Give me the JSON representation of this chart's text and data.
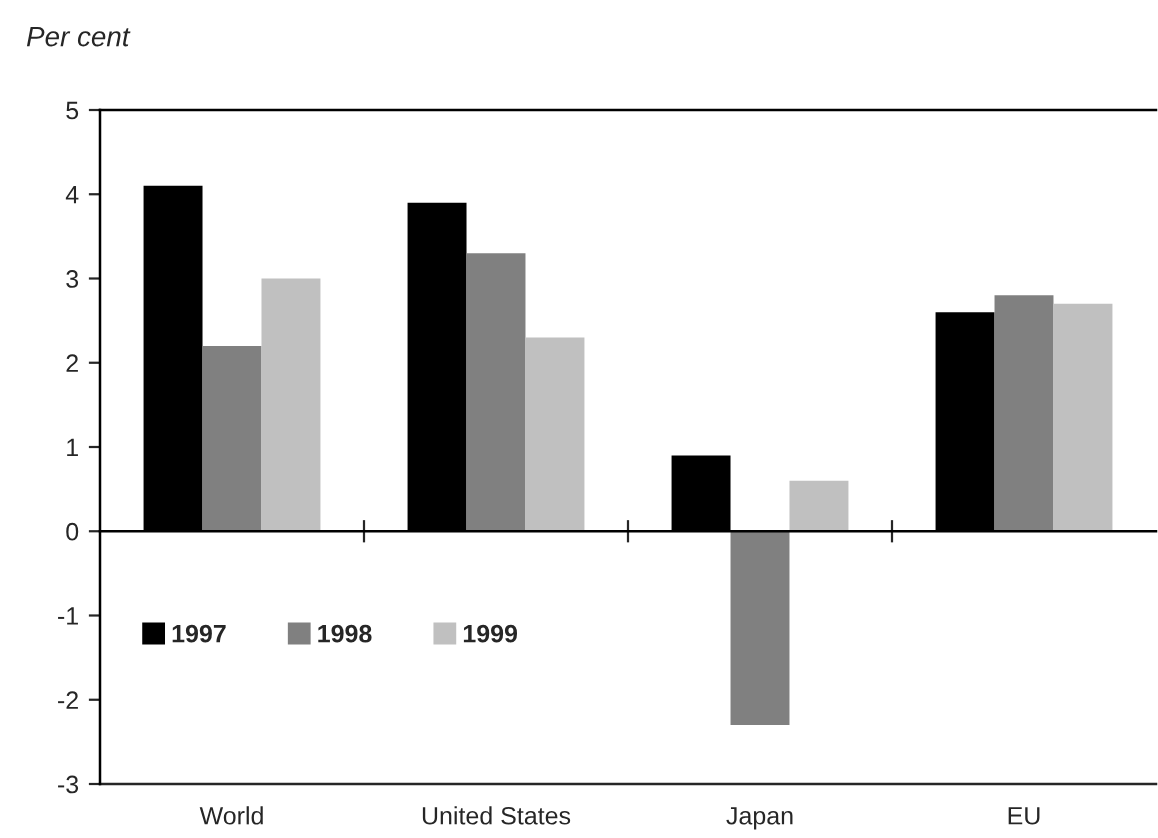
{
  "chart_data": {
    "type": "bar",
    "title": "Per cent",
    "categories": [
      "World",
      "United States",
      "Japan",
      "EU"
    ],
    "series": [
      {
        "name": "1997",
        "color": "#000000",
        "values": [
          4.1,
          3.9,
          0.9,
          2.6
        ]
      },
      {
        "name": "1998",
        "color": "#808080",
        "values": [
          2.2,
          3.3,
          -2.3,
          2.8
        ]
      },
      {
        "name": "1999",
        "color": "#c0c0c0",
        "values": [
          3.0,
          2.3,
          0.6,
          2.7
        ]
      }
    ],
    "ylim": [
      -3,
      5
    ],
    "yticks": [
      -3,
      -2,
      -1,
      0,
      1,
      2,
      3,
      4,
      5
    ],
    "legend": "left"
  }
}
